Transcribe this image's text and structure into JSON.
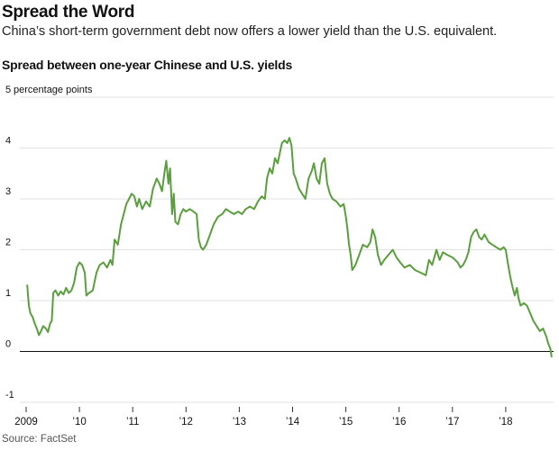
{
  "header": {
    "title": "Spread the Word",
    "subtitle": "China’s short-term government debt now offers a lower yield than the U.S. equivalent."
  },
  "source": "Source: FactSet",
  "colors": {
    "line": "#5a9e3e",
    "grid": "#e2e2e2",
    "zero_line": "#111111",
    "text": "#111111"
  },
  "chart_data": {
    "type": "line",
    "title": "Spread between one-year Chinese and U.S. yields",
    "xlabel": "",
    "ylabel": "",
    "y_unit_label": "percentage points",
    "ylim": [
      -1,
      5
    ],
    "xlim": [
      2009.0,
      2019.0
    ],
    "y_ticks": [
      {
        "value": 5,
        "label": "5"
      },
      {
        "value": 4,
        "label": "4"
      },
      {
        "value": 3,
        "label": "3"
      },
      {
        "value": 2,
        "label": "2"
      },
      {
        "value": 1,
        "label": "1"
      },
      {
        "value": 0,
        "label": "0"
      },
      {
        "value": -1,
        "label": "-1"
      }
    ],
    "x_ticks": [
      {
        "value": 2009,
        "label": "2009"
      },
      {
        "value": 2010,
        "label": "’10"
      },
      {
        "value": 2011,
        "label": "’11"
      },
      {
        "value": 2012,
        "label": "’12"
      },
      {
        "value": 2013,
        "label": "’13"
      },
      {
        "value": 2014,
        "label": "’14"
      },
      {
        "value": 2015,
        "label": "’15"
      },
      {
        "value": 2016,
        "label": "’16"
      },
      {
        "value": 2017,
        "label": "’17"
      },
      {
        "value": 2018,
        "label": "’18"
      }
    ],
    "grid": true,
    "series": [
      {
        "values": [
          [
            2009.02,
            1.3
          ],
          [
            2009.05,
            0.9
          ],
          [
            2009.08,
            0.75
          ],
          [
            2009.12,
            0.68
          ],
          [
            2009.16,
            0.55
          ],
          [
            2009.2,
            0.45
          ],
          [
            2009.24,
            0.32
          ],
          [
            2009.28,
            0.4
          ],
          [
            2009.32,
            0.5
          ],
          [
            2009.37,
            0.45
          ],
          [
            2009.41,
            0.38
          ],
          [
            2009.45,
            0.55
          ],
          [
            2009.48,
            0.6
          ],
          [
            2009.51,
            1.15
          ],
          [
            2009.55,
            1.2
          ],
          [
            2009.6,
            1.1
          ],
          [
            2009.65,
            1.18
          ],
          [
            2009.7,
            1.12
          ],
          [
            2009.75,
            1.25
          ],
          [
            2009.8,
            1.15
          ],
          [
            2009.85,
            1.2
          ],
          [
            2009.9,
            1.35
          ],
          [
            2009.95,
            1.65
          ],
          [
            2010.0,
            1.75
          ],
          [
            2010.05,
            1.7
          ],
          [
            2010.1,
            1.55
          ],
          [
            2010.13,
            1.1
          ],
          [
            2010.18,
            1.15
          ],
          [
            2010.25,
            1.2
          ],
          [
            2010.32,
            1.55
          ],
          [
            2010.38,
            1.7
          ],
          [
            2010.45,
            1.75
          ],
          [
            2010.52,
            1.65
          ],
          [
            2010.58,
            1.8
          ],
          [
            2010.62,
            1.7
          ],
          [
            2010.66,
            2.2
          ],
          [
            2010.72,
            2.1
          ],
          [
            2010.78,
            2.5
          ],
          [
            2010.83,
            2.7
          ],
          [
            2010.88,
            2.9
          ],
          [
            2010.93,
            3.0
          ],
          [
            2010.98,
            3.1
          ],
          [
            2011.03,
            3.05
          ],
          [
            2011.08,
            2.85
          ],
          [
            2011.12,
            3.0
          ],
          [
            2011.18,
            2.8
          ],
          [
            2011.25,
            2.95
          ],
          [
            2011.32,
            2.85
          ],
          [
            2011.38,
            3.2
          ],
          [
            2011.45,
            3.4
          ],
          [
            2011.5,
            3.3
          ],
          [
            2011.55,
            3.15
          ],
          [
            2011.6,
            3.55
          ],
          [
            2011.63,
            3.75
          ],
          [
            2011.67,
            3.3
          ],
          [
            2011.7,
            3.6
          ],
          [
            2011.74,
            2.7
          ],
          [
            2011.77,
            3.1
          ],
          [
            2011.8,
            2.55
          ],
          [
            2011.85,
            2.5
          ],
          [
            2011.9,
            2.7
          ],
          [
            2011.95,
            2.8
          ],
          [
            2012.0,
            2.75
          ],
          [
            2012.07,
            2.8
          ],
          [
            2012.14,
            2.75
          ],
          [
            2012.2,
            2.7
          ],
          [
            2012.24,
            2.2
          ],
          [
            2012.28,
            2.05
          ],
          [
            2012.32,
            2.0
          ],
          [
            2012.38,
            2.1
          ],
          [
            2012.45,
            2.3
          ],
          [
            2012.52,
            2.5
          ],
          [
            2012.6,
            2.65
          ],
          [
            2012.68,
            2.7
          ],
          [
            2012.75,
            2.8
          ],
          [
            2012.82,
            2.75
          ],
          [
            2012.9,
            2.7
          ],
          [
            2012.98,
            2.75
          ],
          [
            2013.05,
            2.7
          ],
          [
            2013.12,
            2.8
          ],
          [
            2013.2,
            2.85
          ],
          [
            2013.28,
            2.8
          ],
          [
            2013.35,
            2.95
          ],
          [
            2013.42,
            3.05
          ],
          [
            2013.48,
            3.0
          ],
          [
            2013.52,
            3.4
          ],
          [
            2013.57,
            3.6
          ],
          [
            2013.62,
            3.5
          ],
          [
            2013.67,
            3.8
          ],
          [
            2013.72,
            3.7
          ],
          [
            2013.76,
            3.9
          ],
          [
            2013.8,
            4.1
          ],
          [
            2013.85,
            4.15
          ],
          [
            2013.9,
            4.1
          ],
          [
            2013.94,
            4.2
          ],
          [
            2013.98,
            4.05
          ],
          [
            2014.02,
            3.5
          ],
          [
            2014.06,
            3.4
          ],
          [
            2014.12,
            3.2
          ],
          [
            2014.18,
            3.1
          ],
          [
            2014.24,
            3.0
          ],
          [
            2014.3,
            3.4
          ],
          [
            2014.36,
            3.55
          ],
          [
            2014.4,
            3.7
          ],
          [
            2014.45,
            3.4
          ],
          [
            2014.5,
            3.3
          ],
          [
            2014.55,
            3.7
          ],
          [
            2014.6,
            3.8
          ],
          [
            2014.65,
            3.3
          ],
          [
            2014.7,
            3.1
          ],
          [
            2014.75,
            3.0
          ],
          [
            2014.82,
            2.95
          ],
          [
            2014.9,
            2.85
          ],
          [
            2014.96,
            2.9
          ],
          [
            2015.0,
            2.65
          ],
          [
            2015.03,
            2.4
          ],
          [
            2015.06,
            2.1
          ],
          [
            2015.09,
            1.9
          ],
          [
            2015.12,
            1.6
          ],
          [
            2015.18,
            1.7
          ],
          [
            2015.25,
            1.9
          ],
          [
            2015.32,
            2.1
          ],
          [
            2015.4,
            2.05
          ],
          [
            2015.46,
            2.15
          ],
          [
            2015.5,
            2.4
          ],
          [
            2015.55,
            2.25
          ],
          [
            2015.6,
            1.9
          ],
          [
            2015.66,
            1.7
          ],
          [
            2015.72,
            1.8
          ],
          [
            2015.8,
            1.9
          ],
          [
            2015.88,
            2.0
          ],
          [
            2015.95,
            1.85
          ],
          [
            2016.02,
            1.75
          ],
          [
            2016.1,
            1.65
          ],
          [
            2016.2,
            1.7
          ],
          [
            2016.3,
            1.6
          ],
          [
            2016.4,
            1.55
          ],
          [
            2016.5,
            1.5
          ],
          [
            2016.56,
            1.8
          ],
          [
            2016.62,
            1.7
          ],
          [
            2016.7,
            2.0
          ],
          [
            2016.76,
            1.8
          ],
          [
            2016.82,
            1.95
          ],
          [
            2016.9,
            1.9
          ],
          [
            2017.0,
            1.85
          ],
          [
            2017.05,
            1.8
          ],
          [
            2017.1,
            1.75
          ],
          [
            2017.15,
            1.65
          ],
          [
            2017.2,
            1.7
          ],
          [
            2017.25,
            1.8
          ],
          [
            2017.3,
            1.95
          ],
          [
            2017.35,
            2.25
          ],
          [
            2017.4,
            2.35
          ],
          [
            2017.45,
            2.4
          ],
          [
            2017.5,
            2.25
          ],
          [
            2017.55,
            2.2
          ],
          [
            2017.6,
            2.3
          ],
          [
            2017.68,
            2.15
          ],
          [
            2017.75,
            2.1
          ],
          [
            2017.82,
            2.05
          ],
          [
            2017.9,
            2.0
          ],
          [
            2017.96,
            2.05
          ],
          [
            2018.0,
            2.0
          ],
          [
            2018.03,
            1.8
          ],
          [
            2018.08,
            1.5
          ],
          [
            2018.12,
            1.3
          ],
          [
            2018.17,
            1.1
          ],
          [
            2018.21,
            1.25
          ],
          [
            2018.24,
            1.05
          ],
          [
            2018.28,
            0.9
          ],
          [
            2018.34,
            0.95
          ],
          [
            2018.4,
            0.9
          ],
          [
            2018.46,
            0.75
          ],
          [
            2018.52,
            0.6
          ],
          [
            2018.58,
            0.5
          ],
          [
            2018.64,
            0.4
          ],
          [
            2018.7,
            0.45
          ],
          [
            2018.76,
            0.3
          ],
          [
            2018.8,
            0.15
          ],
          [
            2018.84,
            0.05
          ],
          [
            2018.86,
            -0.1
          ]
        ]
      }
    ]
  }
}
